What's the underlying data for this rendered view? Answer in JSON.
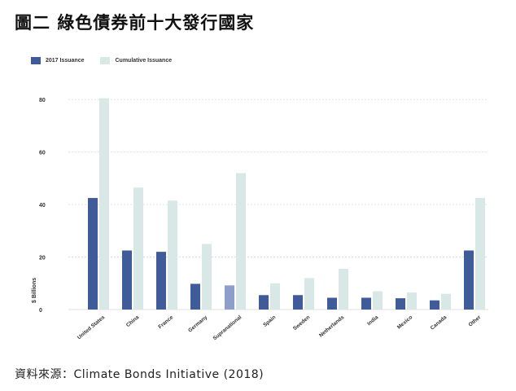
{
  "page": {
    "title": "圖二 綠色債券前十大發行國家",
    "source": "資料來源：Climate Bonds Initiative (2018)"
  },
  "colors": {
    "series_2017": "#3f5b9a",
    "series_2017_highlight": "#8e9ecb",
    "series_cumulative": "#d8e8e7",
    "grid": "#d9d9d9",
    "axis_text": "#333333"
  },
  "chart_data": {
    "type": "bar",
    "ylabel": "$ Billions",
    "ylim": [
      0,
      90
    ],
    "yticks": [
      0,
      20,
      40,
      60,
      80
    ],
    "grid": true,
    "legend_position": "top-left",
    "categories": [
      "United States",
      "China",
      "France",
      "Germany",
      "Supranational",
      "Spain",
      "Sweden",
      "Netherlands",
      "India",
      "Mexico",
      "Canada",
      "Other"
    ],
    "series": [
      {
        "name": "2017 Issuance",
        "values": [
          42.5,
          22.5,
          22,
          9.8,
          9.2,
          5.5,
          5.5,
          4.5,
          4.5,
          4.3,
          3.5,
          22.5
        ]
      },
      {
        "name": "Cumulative Issuance",
        "values": [
          80.5,
          46.5,
          41.5,
          25,
          52,
          10,
          12,
          15.5,
          7,
          6.5,
          6,
          42.5
        ]
      }
    ]
  }
}
